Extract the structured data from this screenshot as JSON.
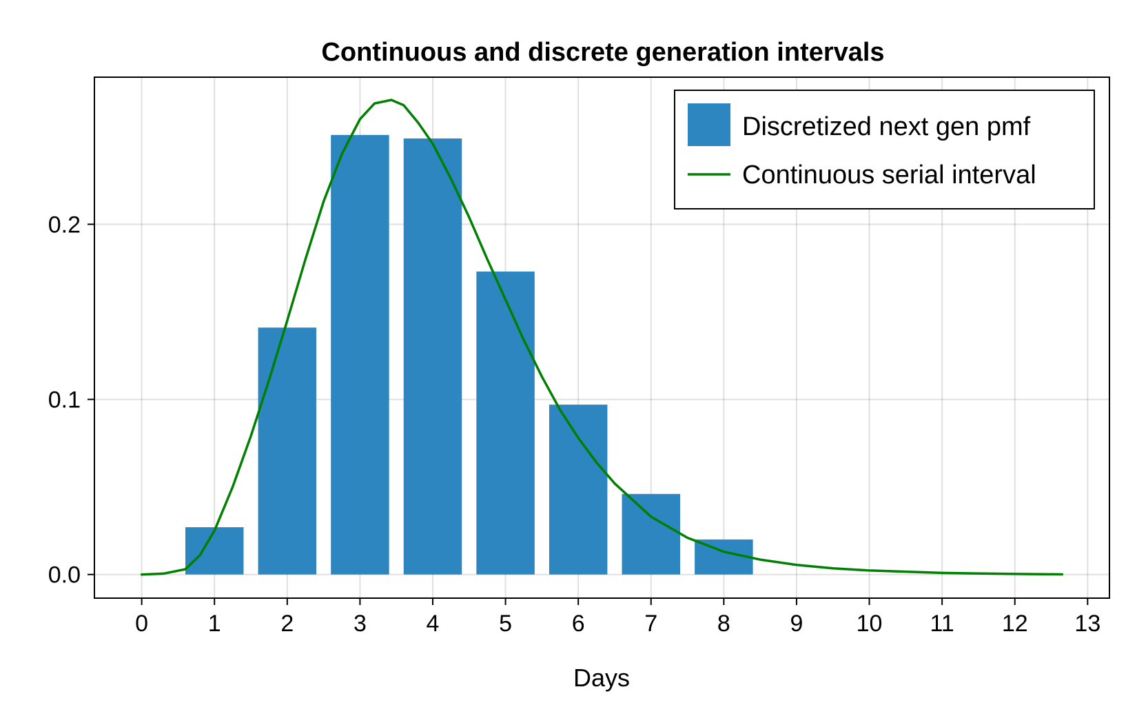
{
  "chart_data": {
    "type": "bar",
    "title": "Continuous and discrete generation intervals",
    "xlabel": "Days",
    "ylabel": "",
    "xlim": [
      -0.65,
      13.3
    ],
    "ylim": [
      -0.0135,
      0.284
    ],
    "x_ticks": [
      0,
      1,
      2,
      3,
      4,
      5,
      6,
      7,
      8,
      9,
      10,
      11,
      12,
      13
    ],
    "x_tick_labels": [
      "0",
      "1",
      "2",
      "3",
      "4",
      "5",
      "6",
      "7",
      "8",
      "9",
      "10",
      "11",
      "12",
      "13"
    ],
    "y_ticks": [
      0.0,
      0.1,
      0.2
    ],
    "y_tick_labels": [
      "0.0",
      "0.1",
      "0.2"
    ],
    "grid": true,
    "legend_position": "top-right",
    "series": [
      {
        "name": "Discretized next gen pmf",
        "type": "bar",
        "color": "#2e86c1",
        "x": [
          1,
          2,
          3,
          4,
          5,
          6,
          7,
          8
        ],
        "values": [
          0.027,
          0.141,
          0.251,
          0.249,
          0.173,
          0.097,
          0.046,
          0.02
        ]
      },
      {
        "name": "Continuous serial interval",
        "type": "line",
        "color": "#008000",
        "x": [
          0,
          0.3,
          0.6,
          0.8,
          1.0,
          1.25,
          1.5,
          1.75,
          2.0,
          2.25,
          2.5,
          2.75,
          3.0,
          3.2,
          3.43,
          3.6,
          3.8,
          4.0,
          4.25,
          4.5,
          4.75,
          5.0,
          5.25,
          5.5,
          5.75,
          6.0,
          6.25,
          6.5,
          7.0,
          7.5,
          8.0,
          8.5,
          9.0,
          9.5,
          10.0,
          11.0,
          12.0,
          12.65
        ],
        "y": [
          0.0,
          0.0005,
          0.003,
          0.011,
          0.025,
          0.05,
          0.079,
          0.111,
          0.145,
          0.18,
          0.213,
          0.24,
          0.26,
          0.269,
          0.271,
          0.268,
          0.258,
          0.246,
          0.226,
          0.204,
          0.18,
          0.157,
          0.134,
          0.113,
          0.094,
          0.078,
          0.064,
          0.052,
          0.033,
          0.021,
          0.013,
          0.0085,
          0.0055,
          0.0035,
          0.0023,
          0.0009,
          0.0003,
          0.0001
        ]
      }
    ]
  }
}
